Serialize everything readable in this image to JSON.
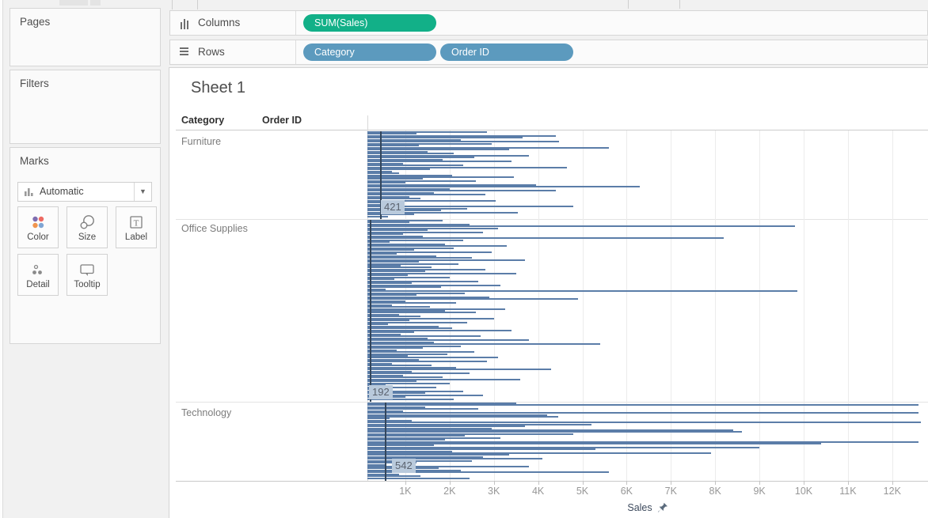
{
  "app": {
    "name": "Tableau worksheet"
  },
  "sidebar": {
    "pages": {
      "title": "Pages"
    },
    "filters": {
      "title": "Filters"
    },
    "marks": {
      "title": "Marks",
      "mark_type": "Automatic",
      "dropdown_caret": "▼",
      "buttons": [
        {
          "label": "Color",
          "icon": "color-dots-icon"
        },
        {
          "label": "Size",
          "icon": "size-circles-icon"
        },
        {
          "label": "Label",
          "icon": "label-T-icon"
        },
        {
          "label": "Detail",
          "icon": "detail-dots-icon"
        },
        {
          "label": "Tooltip",
          "icon": "tooltip-bubble-icon"
        }
      ],
      "color_dot_colors": [
        "#7f6db0",
        "#ee6a63",
        "#f0954f",
        "#7fa5d4"
      ]
    }
  },
  "shelves": {
    "columns": {
      "label": "Columns",
      "pills": [
        {
          "text": "SUM(Sales)",
          "color": "#12b088",
          "type": "measure"
        }
      ]
    },
    "rows": {
      "label": "Rows",
      "pills": [
        {
          "text": "Category",
          "color": "#5c9abe",
          "type": "dimension"
        },
        {
          "text": "Order ID",
          "color": "#5c9abe",
          "type": "dimension"
        }
      ]
    }
  },
  "sheet": {
    "title": "Sheet 1",
    "col_headers": [
      "Category",
      "Order ID"
    ],
    "row_labels": [
      "Furniture",
      "Office Supplies",
      "Technology"
    ]
  },
  "chart_data": {
    "type": "bar",
    "orientation": "horizontal",
    "title": "Sheet 1",
    "xlabel": "Sales",
    "axis_pinned": true,
    "x_ticks": [
      "1K",
      "2K",
      "3K",
      "4K",
      "5K",
      "6K",
      "7K",
      "8K",
      "9K",
      "10K",
      "11K",
      "12K"
    ],
    "xlim": [
      0,
      12700
    ],
    "grid": true,
    "bar_color": "#5b7da8",
    "highlight_line_color": "#33465c",
    "min_label_bg": "#b9cadc",
    "min_label_color": "#5a626e",
    "series": [
      {
        "name": "Furniture",
        "min_label": "421",
        "min_value": 421,
        "values": [
          2850,
          1250,
          4400,
          3650,
          2250,
          4480,
          2950,
          1300,
          5600,
          3350,
          1500,
          2100,
          3800,
          2550,
          1850,
          3400,
          950,
          2300,
          4650,
          1550,
          700,
          850,
          2050,
          3450,
          1400,
          2600,
          1000,
          3950,
          6300,
          2000,
          4400,
          1650,
          2800,
          1100,
          1350,
          3050,
          900,
          421,
          4800,
          2400,
          1800,
          3550,
          1200,
          600
        ]
      },
      {
        "name": "Office Supplies",
        "min_label": "192",
        "min_value": 192,
        "values": [
          1850,
          1100,
          2450,
          9800,
          3100,
          1500,
          2750,
          950,
          1400,
          8200,
          2300,
          650,
          1900,
          3300,
          2100,
          1200,
          2950,
          800,
          1700,
          2500,
          3700,
          1300,
          2200,
          900,
          1600,
          2800,
          1450,
          3500,
          1050,
          2000,
          750,
          2650,
          1150,
          3150,
          1800,
          550,
          9850,
          2350,
          1250,
          2900,
          4900,
          1000,
          2150,
          700,
          1550,
          3250,
          1900,
          2600,
          850,
          1350,
          3000,
          1100,
          2400,
          600,
          1750,
          2050,
          3400,
          1200,
          900,
          2700,
          1500,
          3800,
          1650,
          5400,
          2250,
          1400,
          800,
          2550,
          1950,
          1050,
          3100,
          1300,
          2850,
          700,
          1600,
          2150,
          4300,
          1150,
          2450,
          950,
          1850,
          3600,
          1250,
          2000,
          550,
          1700,
          192,
          2300,
          1450,
          2750,
          1000,
          2100
        ]
      },
      {
        "name": "Technology",
        "min_label": "542",
        "min_value": 542,
        "values": [
          3500,
          12600,
          1450,
          2650,
          950,
          12600,
          4200,
          4450,
          650,
          1150,
          12650,
          5200,
          3700,
          2950,
          8400,
          8600,
          4800,
          2350,
          3150,
          1900,
          12600,
          10400,
          1650,
          9000,
          5300,
          2050,
          7900,
          3350,
          2750,
          4100,
          2500,
          1250,
          542,
          3800,
          1750,
          2250,
          5600,
          850,
          1350,
          2450
        ]
      }
    ]
  }
}
